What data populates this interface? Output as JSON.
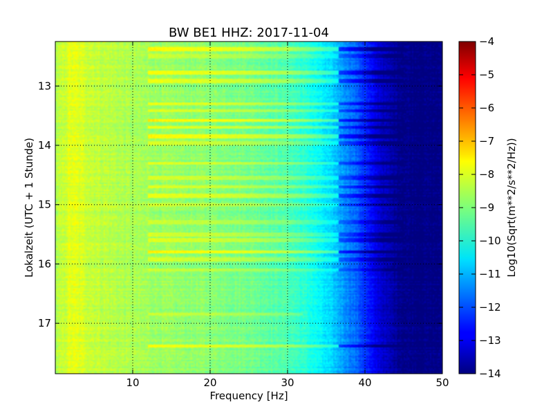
{
  "chart_data": {
    "type": "heatmap",
    "title": "BW BE1 HHZ: 2017-11-04",
    "xlabel": "Frequency [Hz]",
    "ylabel": "Lokalzeit (UTC + 1 Stunde)",
    "xlim": [
      0,
      50
    ],
    "ylim": [
      12.25,
      17.85
    ],
    "y_inverted": true,
    "grid": true,
    "x_ticks": [
      10,
      20,
      30,
      40,
      50
    ],
    "y_ticks": [
      13,
      14,
      15,
      16,
      17
    ],
    "colorbar": {
      "label": "Log10(Sqrt(m**2/s**2/Hz))",
      "range": [
        -14,
        -4
      ],
      "ticks": [
        -4,
        -5,
        -6,
        -7,
        -8,
        -9,
        -10,
        -11,
        -12,
        -13,
        -14
      ],
      "colormap": "jet"
    },
    "spectrum_profile": {
      "frequency_hz": [
        0,
        2,
        5,
        10,
        15,
        20,
        25,
        30,
        33,
        36,
        39,
        41,
        43,
        45,
        47,
        50
      ],
      "log10_amplitude": [
        -8.6,
        -8.0,
        -8.3,
        -8.6,
        -8.8,
        -8.9,
        -9.1,
        -9.5,
        -10.0,
        -10.8,
        -11.8,
        -12.8,
        -13.5,
        -13.9,
        -14.0,
        -14.0
      ]
    },
    "horizontal_bands": [
      {
        "time": 12.38,
        "log10_offset": 1.0,
        "f_max": 45
      },
      {
        "time": 12.5,
        "log10_offset": 0.5,
        "f_max": 45
      },
      {
        "time": 12.77,
        "log10_offset": 0.9,
        "f_max": 45
      },
      {
        "time": 12.92,
        "log10_offset": 0.8,
        "f_max": 45
      },
      {
        "time": 13.3,
        "log10_offset": 0.8,
        "f_max": 45
      },
      {
        "time": 13.42,
        "log10_offset": 0.7,
        "f_max": 45
      },
      {
        "time": 13.58,
        "log10_offset": 1.1,
        "f_max": 45
      },
      {
        "time": 13.7,
        "log10_offset": 0.8,
        "f_max": 45
      },
      {
        "time": 13.85,
        "log10_offset": 1.0,
        "f_max": 45
      },
      {
        "time": 13.97,
        "log10_offset": 0.6,
        "f_max": 45
      },
      {
        "time": 14.3,
        "log10_offset": 0.7,
        "f_max": 45
      },
      {
        "time": 14.55,
        "log10_offset": 0.6,
        "f_max": 45
      },
      {
        "time": 14.7,
        "log10_offset": 0.7,
        "f_max": 45
      },
      {
        "time": 14.85,
        "log10_offset": 0.8,
        "f_max": 45
      },
      {
        "time": 15.0,
        "log10_offset": 0.6,
        "f_max": 45
      },
      {
        "time": 15.3,
        "log10_offset": 0.5,
        "f_max": 45
      },
      {
        "time": 15.5,
        "log10_offset": 0.6,
        "f_max": 45
      },
      {
        "time": 15.6,
        "log10_offset": 0.7,
        "f_max": 45
      },
      {
        "time": 15.8,
        "log10_offset": 1.1,
        "f_max": 46
      },
      {
        "time": 15.92,
        "log10_offset": 0.6,
        "f_max": 45
      },
      {
        "time": 16.1,
        "log10_offset": 0.5,
        "f_max": 45
      },
      {
        "time": 16.85,
        "log10_offset": 0.5,
        "f_max": 32
      },
      {
        "time": 17.38,
        "log10_offset": 0.9,
        "f_max": 45
      }
    ]
  }
}
